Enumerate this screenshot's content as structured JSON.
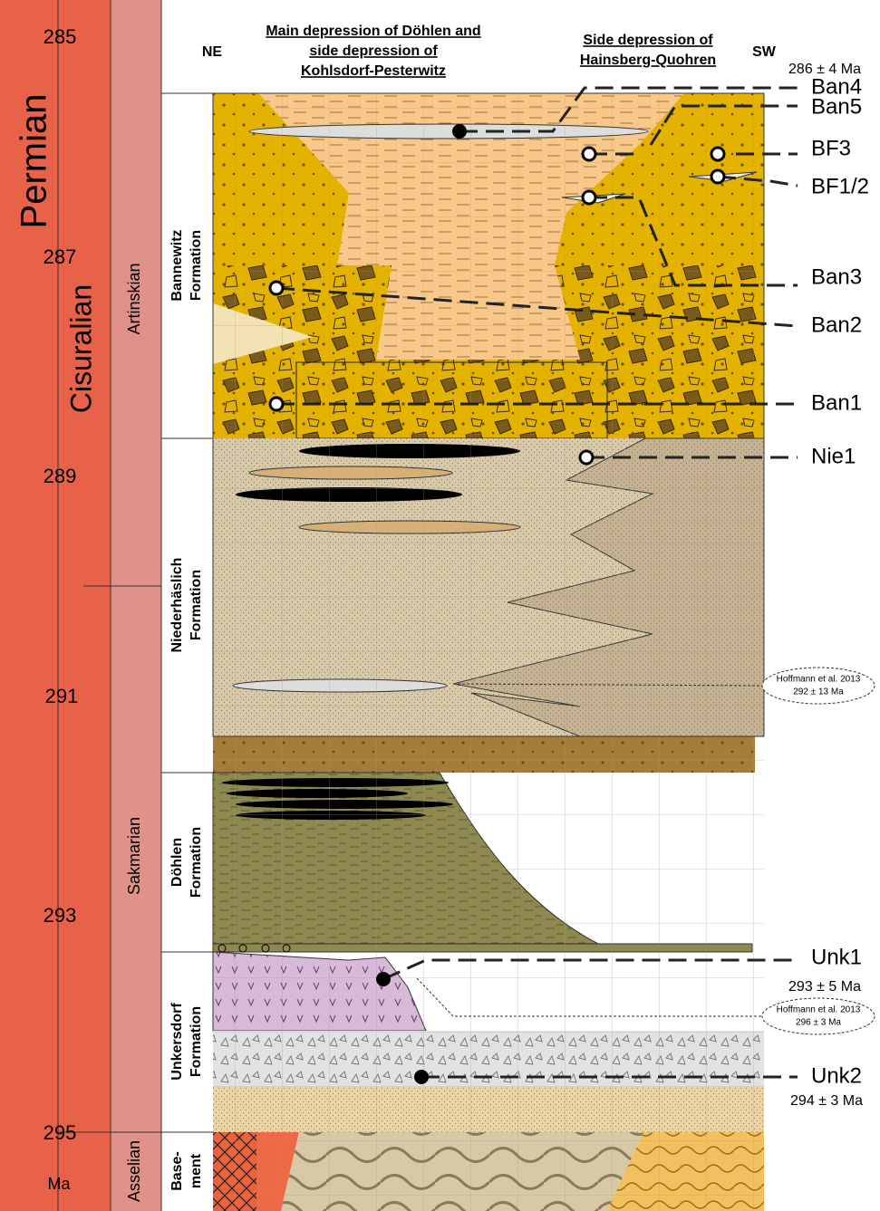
{
  "time_scale": {
    "ages": [
      "285",
      "287",
      "289",
      "291",
      "293",
      "295"
    ],
    "unit": "Ma",
    "period": "Permian",
    "epoch": "Cisuralian",
    "stages": [
      "Artinskian",
      "Sakmarian",
      "Asselian"
    ]
  },
  "header": {
    "left": "NE",
    "right": "SW",
    "main_depression": [
      "Main depression of Döhlen and",
      "side depression of",
      "Kohlsdorf-Pesterwitz"
    ],
    "side_depression": [
      "Side depression of",
      "Hainsberg-Quohren"
    ]
  },
  "formations": [
    [
      "Bannewitz",
      "Formation"
    ],
    [
      "Niederhäslich",
      "Formation"
    ],
    [
      "Döhlen",
      "Formation"
    ],
    [
      "Unkersdorf",
      "Formation"
    ],
    [
      "Base-",
      "ment"
    ]
  ],
  "samples": [
    "Ban4",
    "Ban5",
    "BF3",
    "BF1/2",
    "Ban3",
    "Ban2",
    "Ban1",
    "Nie1",
    "Unk1",
    "Unk2"
  ],
  "ages": [
    "286 ± 4 Ma",
    "293 ± 5 Ma",
    "294 ± 3 Ma"
  ],
  "references": [
    [
      "Hoffmann et al. 2013",
      "292 ± 13 Ma"
    ],
    [
      "Hoffmann et al. 2013",
      "296 ± 3 Ma"
    ]
  ]
}
